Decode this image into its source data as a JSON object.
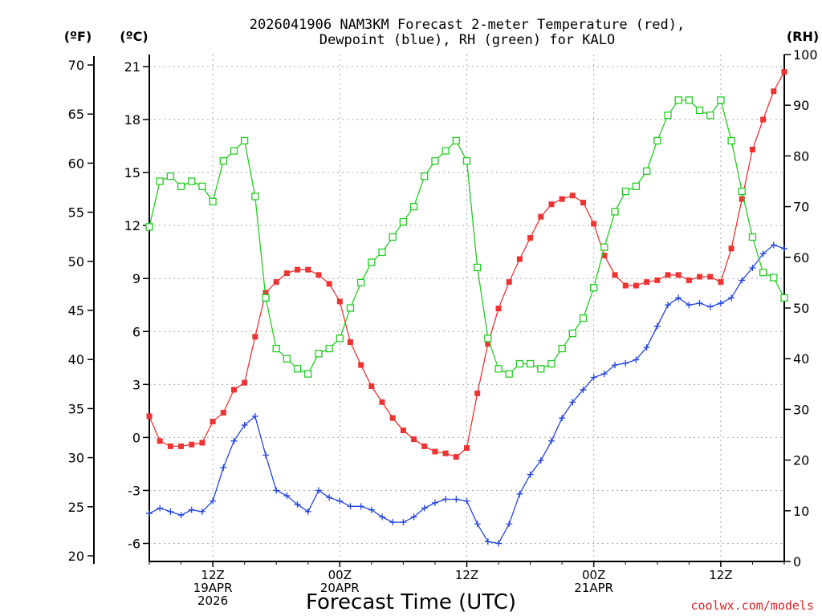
{
  "chart_data": {
    "type": "line",
    "title_line1": "2026041906 NAM3KM Forecast 2-meter Temperature (red),",
    "title_line2": "Dewpoint (blue), RH (green) for KALO",
    "xlabel": "Forecast Time (UTC)",
    "watermark": "coolwx.com/models",
    "axis_labels": {
      "fahrenheit": "(ºF)",
      "celsius": "(ºC)",
      "rh": "(RH)"
    },
    "x_range_hours": [
      0,
      60
    ],
    "x_ticks": [
      {
        "hour": 6,
        "lines": [
          "12Z",
          "19APR",
          "2026"
        ]
      },
      {
        "hour": 18,
        "lines": [
          "00Z",
          "20APR"
        ]
      },
      {
        "hour": 30,
        "lines": [
          "12Z"
        ]
      },
      {
        "hour": 42,
        "lines": [
          "00Z",
          "21APR"
        ]
      },
      {
        "hour": 54,
        "lines": [
          "12Z"
        ]
      }
    ],
    "y_celsius": {
      "range": [
        -7,
        21.5
      ],
      "ticks": [
        -6,
        -3,
        0,
        3,
        6,
        9,
        12,
        15,
        18,
        21
      ]
    },
    "y_fahrenheit": {
      "ticks": [
        20,
        25,
        30,
        35,
        40,
        45,
        50,
        55,
        60,
        65,
        70
      ]
    },
    "y_rh": {
      "range": [
        0,
        100
      ],
      "ticks": [
        0,
        10,
        20,
        30,
        40,
        50,
        60,
        70,
        80,
        90,
        100
      ]
    },
    "x": [
      0,
      1,
      2,
      3,
      4,
      5,
      6,
      7,
      8,
      9,
      10,
      11,
      12,
      13,
      14,
      15,
      16,
      17,
      18,
      19,
      20,
      21,
      22,
      23,
      24,
      25,
      26,
      27,
      28,
      29,
      30,
      31,
      32,
      33,
      34,
      35,
      36,
      37,
      38,
      39,
      40,
      41,
      42,
      43,
      44,
      45,
      46,
      47,
      48,
      49,
      50,
      51,
      52,
      53,
      54,
      55,
      56,
      57,
      58,
      59,
      60
    ],
    "series": [
      {
        "name": "2-meter Temperature",
        "unit": "C",
        "color": "#ee3333",
        "marker": "filled-square",
        "values": [
          1.2,
          -0.2,
          -0.5,
          -0.5,
          -0.4,
          -0.3,
          0.9,
          1.4,
          2.7,
          3.1,
          5.7,
          8.2,
          8.8,
          9.3,
          9.5,
          9.5,
          9.2,
          8.7,
          7.7,
          5.4,
          4.1,
          2.9,
          2.0,
          1.1,
          0.4,
          -0.1,
          -0.5,
          -0.8,
          -0.9,
          -1.1,
          -0.6,
          2.5,
          5.3,
          7.3,
          8.8,
          10.1,
          11.3,
          12.5,
          13.2,
          13.5,
          13.7,
          13.3,
          12.1,
          10.3,
          9.2,
          8.6,
          8.6,
          8.8,
          8.9,
          9.2,
          9.2,
          8.9,
          9.1,
          9.1,
          8.8,
          10.7,
          13.5,
          16.3,
          18.0,
          19.6,
          20.7
        ]
      },
      {
        "name": "Dewpoint",
        "unit": "C",
        "color": "#2244dd",
        "marker": "plus",
        "values": [
          -4.3,
          -4.0,
          -4.2,
          -4.4,
          -4.1,
          -4.2,
          -3.6,
          -1.7,
          -0.2,
          0.7,
          1.2,
          -1.0,
          -3.0,
          -3.3,
          -3.8,
          -4.2,
          -3.0,
          -3.4,
          -3.6,
          -3.9,
          -3.9,
          -4.1,
          -4.5,
          -4.8,
          -4.8,
          -4.5,
          -4.0,
          -3.7,
          -3.5,
          -3.5,
          -3.6,
          -4.9,
          -5.9,
          -6.0,
          -4.9,
          -3.2,
          -2.1,
          -1.3,
          -0.2,
          1.1,
          2.0,
          2.7,
          3.4,
          3.6,
          4.1,
          4.2,
          4.4,
          5.1,
          6.3,
          7.5,
          7.9,
          7.5,
          7.6,
          7.4,
          7.6,
          7.9,
          8.9,
          9.6,
          10.4,
          10.9,
          10.7
        ]
      },
      {
        "name": "RH",
        "unit": "%",
        "color": "#22cc22",
        "marker": "open-square",
        "values": [
          66,
          75,
          76,
          74,
          75,
          74,
          71,
          79,
          81,
          83,
          72,
          52,
          42,
          40,
          38,
          37,
          41,
          42,
          44,
          50,
          55,
          59,
          61,
          64,
          67,
          70,
          76,
          79,
          81,
          83,
          79,
          58,
          44,
          38,
          37,
          39,
          39,
          38,
          39,
          42,
          45,
          48,
          54,
          62,
          69,
          73,
          74,
          77,
          83,
          88,
          91,
          91,
          89,
          88,
          91,
          83,
          73,
          64,
          57,
          56,
          52
        ]
      }
    ]
  }
}
